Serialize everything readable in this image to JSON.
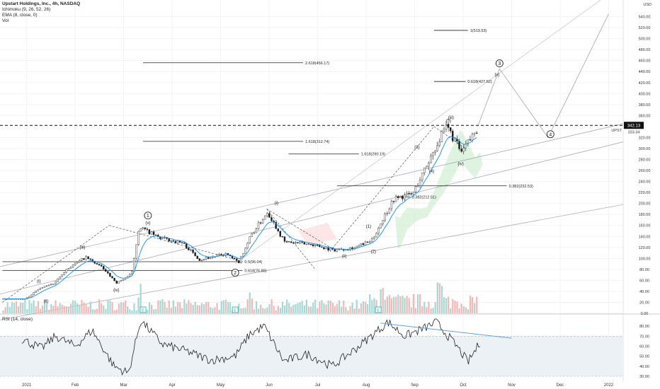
{
  "legend": {
    "title": "Upstart Holdings, Inc., 4h, NASDAQ",
    "ichimoku": "Ichimoku (9, 26, 52, 26)",
    "ema": "EMA (8, close, 0)",
    "vol": "Vol"
  },
  "rsi_label": "RSI (14, close)",
  "colors": {
    "candle_up": "#26a69a",
    "candle_down": "#ef5350",
    "ema": "#2196f3",
    "rsi": "#222222",
    "rsi_band": "#ecf1f6",
    "price_tag": "#111111"
  },
  "chart_data": [
    {
      "type": "candlestick",
      "symbol": "UPST",
      "price_label": "342.13",
      "price_sub": "333.34",
      "ylim": [
        0,
        560
      ],
      "yaxis_unit": "USD",
      "yticks": [
        "540.00",
        "520.00",
        "500.00",
        "480.00",
        "460.00",
        "440.00",
        "420.00",
        "400.00",
        "380.00",
        "360.00",
        "340.00",
        "320.00",
        "300.00",
        "280.00",
        "260.00",
        "240.00",
        "220.00",
        "200.00",
        "180.00",
        "160.00",
        "140.00",
        "120.00",
        "100.00",
        "80.00",
        "60.00",
        "40.00",
        "20.00",
        "0.00"
      ],
      "xticks": [
        "2021",
        "Feb",
        "Mar",
        "Apr",
        "May",
        "Jun",
        "Jul",
        "Aug",
        "Sep",
        "Oct",
        "Nov",
        "Dec",
        "2022"
      ],
      "xtick_pos": [
        0.0,
        1.0,
        2.0,
        3.0,
        4.0,
        5.0,
        6.0,
        7.0,
        8.0,
        9.0,
        10.0,
        11.0,
        12.0
      ],
      "price_path_anchors": [
        {
          "t": -0.05,
          "p": 26
        },
        {
          "t": 0.25,
          "p": 45
        },
        {
          "t": 0.55,
          "p": 55
        },
        {
          "t": 0.8,
          "p": 80
        },
        {
          "t": 1.2,
          "p": 102
        },
        {
          "t": 1.5,
          "p": 86
        },
        {
          "t": 1.85,
          "p": 55
        },
        {
          "t": 2.15,
          "p": 72
        },
        {
          "t": 2.3,
          "p": 158
        },
        {
          "t": 2.7,
          "p": 138
        },
        {
          "t": 3.2,
          "p": 128
        },
        {
          "t": 3.55,
          "p": 98
        },
        {
          "t": 4.1,
          "p": 108
        },
        {
          "t": 4.35,
          "p": 92
        },
        {
          "t": 4.6,
          "p": 140
        },
        {
          "t": 4.95,
          "p": 185
        },
        {
          "t": 5.3,
          "p": 130
        },
        {
          "t": 5.9,
          "p": 125
        },
        {
          "t": 6.3,
          "p": 115
        },
        {
          "t": 6.75,
          "p": 120
        },
        {
          "t": 7.1,
          "p": 132
        },
        {
          "t": 7.35,
          "p": 175
        },
        {
          "t": 7.55,
          "p": 208
        },
        {
          "t": 7.95,
          "p": 218
        },
        {
          "t": 8.4,
          "p": 300
        },
        {
          "t": 8.65,
          "p": 340
        },
        {
          "t": 8.95,
          "p": 292
        },
        {
          "t": 9.3,
          "p": 340
        }
      ],
      "volume_range": [
        0,
        45
      ],
      "rsi": {
        "ylim": [
          30,
          90
        ],
        "band": [
          30,
          70
        ],
        "yticks": [
          "80.00",
          "70.00",
          "60.00",
          "50.00",
          "40.00",
          "30.00"
        ],
        "anchors": [
          {
            "t": -0.1,
            "p": 67
          },
          {
            "t": 0.3,
            "p": 58
          },
          {
            "t": 0.6,
            "p": 70
          },
          {
            "t": 1.0,
            "p": 60
          },
          {
            "t": 1.35,
            "p": 76
          },
          {
            "t": 1.8,
            "p": 40
          },
          {
            "t": 2.1,
            "p": 33
          },
          {
            "t": 2.35,
            "p": 86
          },
          {
            "t": 2.8,
            "p": 62
          },
          {
            "t": 3.3,
            "p": 55
          },
          {
            "t": 3.8,
            "p": 46
          },
          {
            "t": 4.3,
            "p": 50
          },
          {
            "t": 4.6,
            "p": 72
          },
          {
            "t": 4.9,
            "p": 80
          },
          {
            "t": 5.3,
            "p": 45
          },
          {
            "t": 5.8,
            "p": 52
          },
          {
            "t": 6.3,
            "p": 40
          },
          {
            "t": 6.8,
            "p": 58
          },
          {
            "t": 7.2,
            "p": 74
          },
          {
            "t": 7.45,
            "p": 84
          },
          {
            "t": 7.8,
            "p": 70
          },
          {
            "t": 8.2,
            "p": 78
          },
          {
            "t": 8.45,
            "p": 84
          },
          {
            "t": 8.9,
            "p": 58
          },
          {
            "t": 9.1,
            "p": 44
          },
          {
            "t": 9.35,
            "p": 64
          }
        ],
        "trendline": [
          {
            "t": 7.3,
            "p": 83
          },
          {
            "t": 10.0,
            "p": 68
          }
        ]
      },
      "markers": [
        {
          "t": 2.5,
          "text": "1",
          "side": "above",
          "p": 178
        },
        {
          "t": 4.3,
          "text": "2",
          "side": "below",
          "p": 74
        },
        {
          "t": 9.75,
          "text": "3",
          "side": "above",
          "p": 455
        },
        {
          "t": 10.8,
          "text": "4",
          "side": "below",
          "p": 326
        }
      ],
      "wave_labels": [
        {
          "t": 0.25,
          "text": "(i)",
          "p": 56
        },
        {
          "t": 0.4,
          "text": "(ii)",
          "p": 20
        },
        {
          "t": 1.15,
          "text": "(iii)",
          "p": 118
        },
        {
          "t": 1.85,
          "text": "(iv)",
          "p": 40
        },
        {
          "t": 2.5,
          "text": "(v)",
          "p": 162
        },
        {
          "t": 5.15,
          "text": "(i)",
          "p": 198
        },
        {
          "t": 6.55,
          "text": "(ii)",
          "p": 102
        },
        {
          "t": 7.05,
          "text": "(1)",
          "p": 156
        },
        {
          "t": 7.15,
          "text": "(2)",
          "p": 110
        },
        {
          "t": 8.35,
          "text": "(4)",
          "p": 256
        },
        {
          "t": 8.05,
          "text": "(3)",
          "p": 300
        },
        {
          "t": 8.75,
          "text": "(iii)",
          "p": 354
        },
        {
          "t": 8.7,
          "text": "(5)",
          "p": 348
        },
        {
          "t": 8.95,
          "text": "(iv)",
          "p": 270
        },
        {
          "t": 9.7,
          "text": "(v)",
          "p": 432
        }
      ],
      "fib_lines": [
        {
          "t0": 8.4,
          "t1": 9.1,
          "p": 515,
          "label": "1(519.53)"
        },
        {
          "t0": 2.4,
          "t1": 5.7,
          "p": 456,
          "label": "2.618(456.17)"
        },
        {
          "t0": 8.4,
          "t1": 9.05,
          "p": 422,
          "label": "0.618(427.62)"
        },
        {
          "t0": 2.4,
          "t1": 5.7,
          "p": 313,
          "label": "1.618(312.74)"
        },
        {
          "t0": 5.4,
          "t1": 6.85,
          "p": 290,
          "label": "1.618(290.19)"
        },
        {
          "t0": 6.4,
          "t1": 9.9,
          "p": 232,
          "label": "0.382(232.53)"
        },
        {
          "t0": 7.6,
          "t1": 7.9,
          "p": 212,
          "label": "0.382(212.51)"
        },
        {
          "t0": -0.5,
          "t1": 4.45,
          "p": 94,
          "label": "0.5(96.04)"
        },
        {
          "t0": -0.5,
          "t1": 4.45,
          "p": 78,
          "label": "0.618(76.85)"
        }
      ],
      "earnings_flags": [
        2.4,
        4.3,
        7.25
      ],
      "earnings_flag_text": "E"
    }
  ]
}
